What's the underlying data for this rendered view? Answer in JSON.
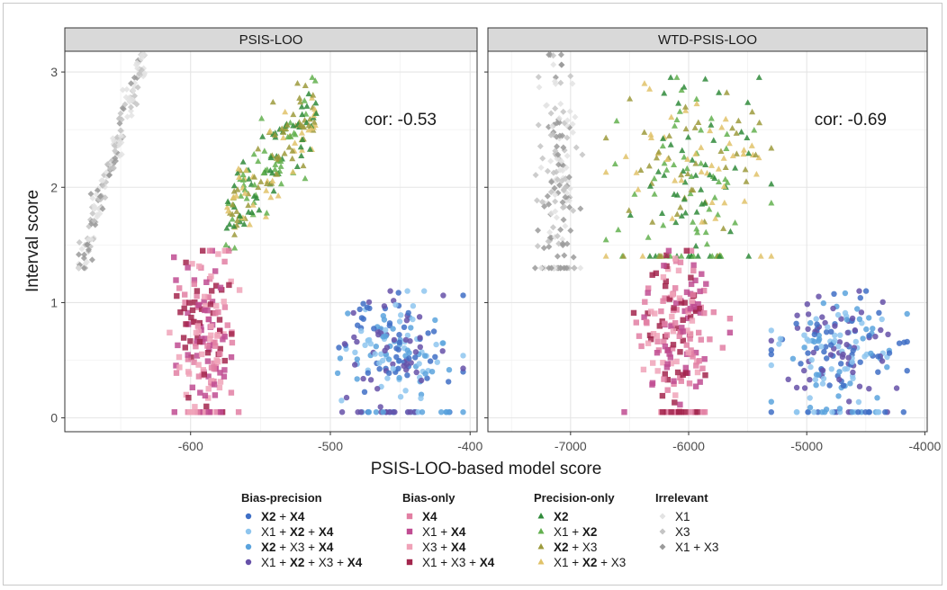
{
  "chart_data": {
    "type": "scatter",
    "ylabel": "Interval score",
    "xlabel": "PSIS-LOO-based model score",
    "panels": [
      {
        "title": "PSIS-LOO",
        "annotation": "cor: -0.53",
        "xlim": [
          -690,
          -395
        ],
        "ylim": [
          -0.12,
          3.18
        ],
        "xticks": [
          -600,
          -500,
          -400
        ],
        "yticks": [
          0,
          1,
          2,
          3
        ],
        "clusters": [
          {
            "group": "Irrelevant",
            "x_range": [
              -680,
              -633
            ],
            "y_range": [
              1.3,
              3.15
            ],
            "trend": "linear",
            "n": 170
          },
          {
            "group": "Precision-only",
            "x_range": [
              -575,
              -510
            ],
            "y_range": [
              1.35,
              2.95
            ],
            "trend": "up",
            "n": 200
          },
          {
            "group": "Bias-only",
            "x_range": [
              -615,
              -565
            ],
            "y_range": [
              0.05,
              1.45
            ],
            "trend": "none",
            "n": 190
          },
          {
            "group": "Bias-precision",
            "x_range": [
              -500,
              -405
            ],
            "y_range": [
              0.05,
              1.1
            ],
            "trend": "none",
            "n": 210
          }
        ]
      },
      {
        "title": "WTD-PSIS-LOO",
        "annotation": "cor: -0.69",
        "xlim": [
          -7700,
          -3980
        ],
        "ylim": [
          -0.12,
          3.18
        ],
        "xticks": [
          -7000,
          -6000,
          -5000,
          -4000
        ],
        "yticks": [
          0,
          1,
          2,
          3
        ],
        "clusters": [
          {
            "group": "Irrelevant",
            "x_range": [
              -7300,
              -6900
            ],
            "y_range": [
              1.3,
              3.15
            ],
            "trend": "none",
            "n": 170
          },
          {
            "group": "Precision-only",
            "x_range": [
              -6700,
              -5300
            ],
            "y_range": [
              1.4,
              2.95
            ],
            "trend": "none",
            "n": 200
          },
          {
            "group": "Bias-only",
            "x_range": [
              -6550,
              -5650
            ],
            "y_range": [
              0.05,
              1.45
            ],
            "trend": "none",
            "n": 190
          },
          {
            "group": "Bias-precision",
            "x_range": [
              -5300,
              -4150
            ],
            "y_range": [
              0.05,
              1.1
            ],
            "trend": "none",
            "n": 210
          }
        ]
      }
    ],
    "legend": {
      "placement": "bottom",
      "groups": [
        {
          "title": "Bias-precision",
          "shape": "circle",
          "items": [
            {
              "color": "#3f6fc6",
              "parts": [
                {
                  "t": "X2",
                  "b": true
                },
                {
                  "t": " + ",
                  "b": false
                },
                {
                  "t": "X4",
                  "b": true
                }
              ]
            },
            {
              "color": "#8ec5ee",
              "parts": [
                {
                  "t": "X1 + ",
                  "b": false
                },
                {
                  "t": "X2",
                  "b": true
                },
                {
                  "t": " + ",
                  "b": false
                },
                {
                  "t": "X4",
                  "b": true
                }
              ]
            },
            {
              "color": "#5aa3dd",
              "parts": [
                {
                  "t": "X2",
                  "b": true
                },
                {
                  "t": " + X3 + ",
                  "b": false
                },
                {
                  "t": "X4",
                  "b": true
                }
              ]
            },
            {
              "color": "#6651a8",
              "parts": [
                {
                  "t": "X1 + ",
                  "b": false
                },
                {
                  "t": "X2",
                  "b": true
                },
                {
                  "t": " + X3 + ",
                  "b": false
                },
                {
                  "t": "X4",
                  "b": true
                }
              ]
            }
          ]
        },
        {
          "title": "Bias-only",
          "shape": "square",
          "items": [
            {
              "color": "#e27fa3",
              "parts": [
                {
                  "t": "X4",
                  "b": true
                }
              ]
            },
            {
              "color": "#c04c92",
              "parts": [
                {
                  "t": "X1 + ",
                  "b": false
                },
                {
                  "t": "X4",
                  "b": true
                }
              ]
            },
            {
              "color": "#f0a3b8",
              "parts": [
                {
                  "t": "X3 + ",
                  "b": false
                },
                {
                  "t": "X4",
                  "b": true
                }
              ]
            },
            {
              "color": "#a3264d",
              "parts": [
                {
                  "t": "X1 + X3 + ",
                  "b": false
                },
                {
                  "t": "X4",
                  "b": true
                }
              ]
            }
          ]
        },
        {
          "title": "Precision-only",
          "shape": "triangle",
          "items": [
            {
              "color": "#2f8a3a",
              "parts": [
                {
                  "t": "X2",
                  "b": true
                }
              ]
            },
            {
              "color": "#63b04f",
              "parts": [
                {
                  "t": "X1 + ",
                  "b": false
                },
                {
                  "t": "X2",
                  "b": true
                }
              ]
            },
            {
              "color": "#9c9a3c",
              "parts": [
                {
                  "t": "X2",
                  "b": true
                },
                {
                  "t": " + X3",
                  "b": false
                }
              ]
            },
            {
              "color": "#e0c268",
              "parts": [
                {
                  "t": "X1 + ",
                  "b": false
                },
                {
                  "t": "X2",
                  "b": true
                },
                {
                  "t": "  + X3",
                  "b": false
                }
              ]
            }
          ]
        },
        {
          "title": "Irrelevant",
          "shape": "diamond",
          "items": [
            {
              "color": "#e3e3e3",
              "parts": [
                {
                  "t": "X1",
                  "b": false
                }
              ]
            },
            {
              "color": "#c4c4c4",
              "parts": [
                {
                  "t": "X3",
                  "b": false
                }
              ]
            },
            {
              "color": "#9a9a9a",
              "parts": [
                {
                  "t": "X1 + X3",
                  "b": false
                }
              ]
            }
          ]
        }
      ]
    }
  }
}
